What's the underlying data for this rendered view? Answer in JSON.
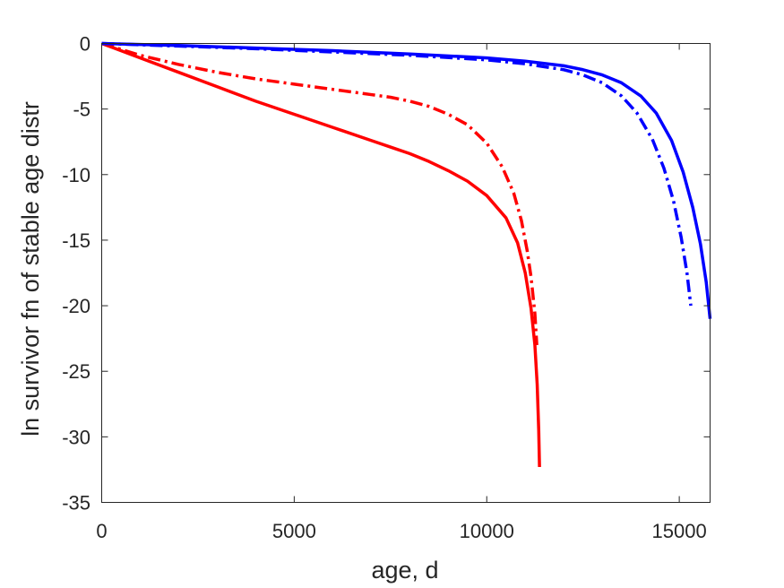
{
  "chart_data": {
    "type": "line",
    "title": "",
    "xlabel": "age, d",
    "ylabel": "ln survivor fn of stable age distr",
    "xlim": [
      0,
      15800
    ],
    "ylim": [
      -35,
      0
    ],
    "xticks": [
      0,
      5000,
      10000,
      15000
    ],
    "yticks": [
      0,
      -5,
      -10,
      -15,
      -20,
      -25,
      -30,
      -35
    ],
    "xtick_labels": [
      "0",
      "5000",
      "10000",
      "15000"
    ],
    "ytick_labels": [
      "0",
      "-5",
      "-10",
      "-15",
      "-20",
      "-25",
      "-30",
      "-35"
    ],
    "grid": false,
    "legend": "none",
    "series": [
      {
        "color": "#ff0000",
        "style": "solid",
        "x": [
          0,
          1000,
          2000,
          3000,
          4000,
          5000,
          6000,
          7000,
          7500,
          8000,
          8500,
          9000,
          9500,
          10000,
          10500,
          10800,
          11000,
          11150,
          11250,
          11310,
          11350,
          11370
        ],
        "y": [
          0,
          -1.1,
          -2.2,
          -3.3,
          -4.4,
          -5.4,
          -6.4,
          -7.4,
          -7.9,
          -8.4,
          -9.0,
          -9.7,
          -10.5,
          -11.6,
          -13.3,
          -15.2,
          -17.5,
          -20.2,
          -23.0,
          -26.0,
          -29.5,
          -32.3
        ]
      },
      {
        "color": "#ff0000",
        "style": "dashdot",
        "x": [
          0,
          1000,
          2000,
          3000,
          4000,
          5000,
          6000,
          7000,
          7500,
          8000,
          8500,
          9000,
          9500,
          10000,
          10400,
          10700,
          10900,
          11050,
          11150,
          11250,
          11300
        ],
        "y": [
          0,
          -0.9,
          -1.6,
          -2.2,
          -2.7,
          -3.1,
          -3.5,
          -3.9,
          -4.1,
          -4.4,
          -4.8,
          -5.4,
          -6.2,
          -7.6,
          -9.4,
          -11.4,
          -13.5,
          -15.8,
          -17.8,
          -20.6,
          -23.0
        ]
      },
      {
        "color": "#0000ff",
        "style": "solid",
        "x": [
          0,
          2000,
          4000,
          6000,
          8000,
          10000,
          11000,
          12000,
          12500,
          13000,
          13500,
          14000,
          14400,
          14800,
          15100,
          15350,
          15550,
          15700,
          15800
        ],
        "y": [
          0,
          -0.15,
          -0.35,
          -0.55,
          -0.8,
          -1.1,
          -1.35,
          -1.7,
          -2.0,
          -2.4,
          -3.0,
          -4.0,
          -5.3,
          -7.4,
          -9.8,
          -12.5,
          -15.3,
          -18.2,
          -21.0
        ]
      },
      {
        "color": "#0000ff",
        "style": "dashdot",
        "x": [
          0,
          2000,
          4000,
          6000,
          8000,
          10000,
          11000,
          12000,
          12500,
          13000,
          13500,
          13900,
          14300,
          14600,
          14850,
          15050,
          15200,
          15300
        ],
        "y": [
          0,
          -0.2,
          -0.4,
          -0.65,
          -0.9,
          -1.25,
          -1.55,
          -2.0,
          -2.4,
          -3.0,
          -4.0,
          -5.3,
          -7.3,
          -9.5,
          -12.0,
          -14.8,
          -17.5,
          -20.0
        ]
      }
    ]
  }
}
